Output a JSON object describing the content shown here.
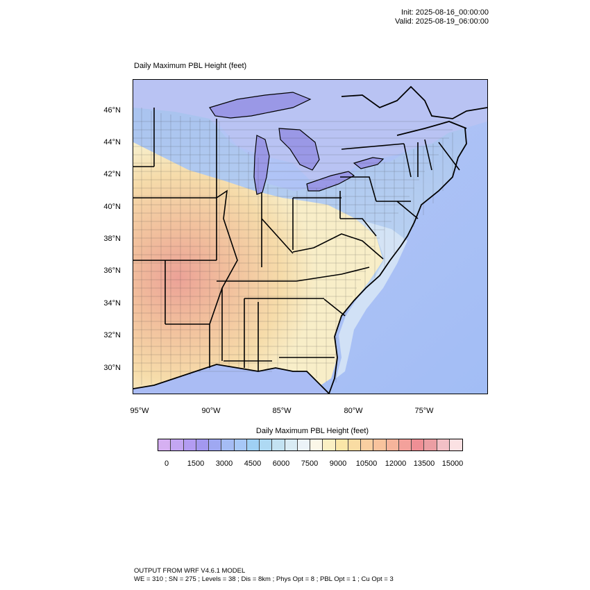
{
  "header": {
    "init": "Init: 2025-08-16_00:00:00",
    "valid": "Valid: 2025-08-19_06:00:00"
  },
  "map": {
    "title": "Daily Maximum PBL Height   (feet)",
    "lat_labels": [
      "46°N",
      "44°N",
      "42°N",
      "40°N",
      "38°N",
      "36°N",
      "34°N",
      "32°N",
      "30°N"
    ],
    "lon_labels": [
      "95°W",
      "90°W",
      "85°W",
      "80°W",
      "75°W"
    ],
    "colors": {
      "ocean": "#a9b8f3",
      "water_lake": "#9c9ae8",
      "border": "#000000",
      "warm_core": "#eeb09c",
      "cool_north": "#b9d4f2"
    }
  },
  "colorbar": {
    "title": "Daily Maximum PBL Height  (feet)",
    "ticks": [
      "0",
      "1500",
      "3000",
      "4500",
      "6000",
      "7500",
      "9000",
      "10500",
      "12000",
      "13500",
      "15000"
    ],
    "colors": [
      "#d6b0f2",
      "#c3a6f2",
      "#b39cf2",
      "#a398ef",
      "#9fa8f2",
      "#a5bcf4",
      "#a7c8f7",
      "#9fd0f4",
      "#aed9f3",
      "#c3e2f2",
      "#d9ebf4",
      "#ecf3f8",
      "#fbf7e8",
      "#fbf0c3",
      "#fbe7a8",
      "#f9dca3",
      "#f9cfa1",
      "#f8c39d",
      "#f6b49b",
      "#f3a19b",
      "#ef8f95",
      "#eb9ea3",
      "#f2c0c6",
      "#fbe1e3"
    ]
  },
  "footer": {
    "line1": "OUTPUT FROM WRF V4.6.1 MODEL",
    "line2": "WE = 310 ; SN = 275 ; Levels = 38 ; Dis = 8km ; Phys Opt = 8 ; PBL Opt = 1 ; Cu Opt = 3"
  }
}
